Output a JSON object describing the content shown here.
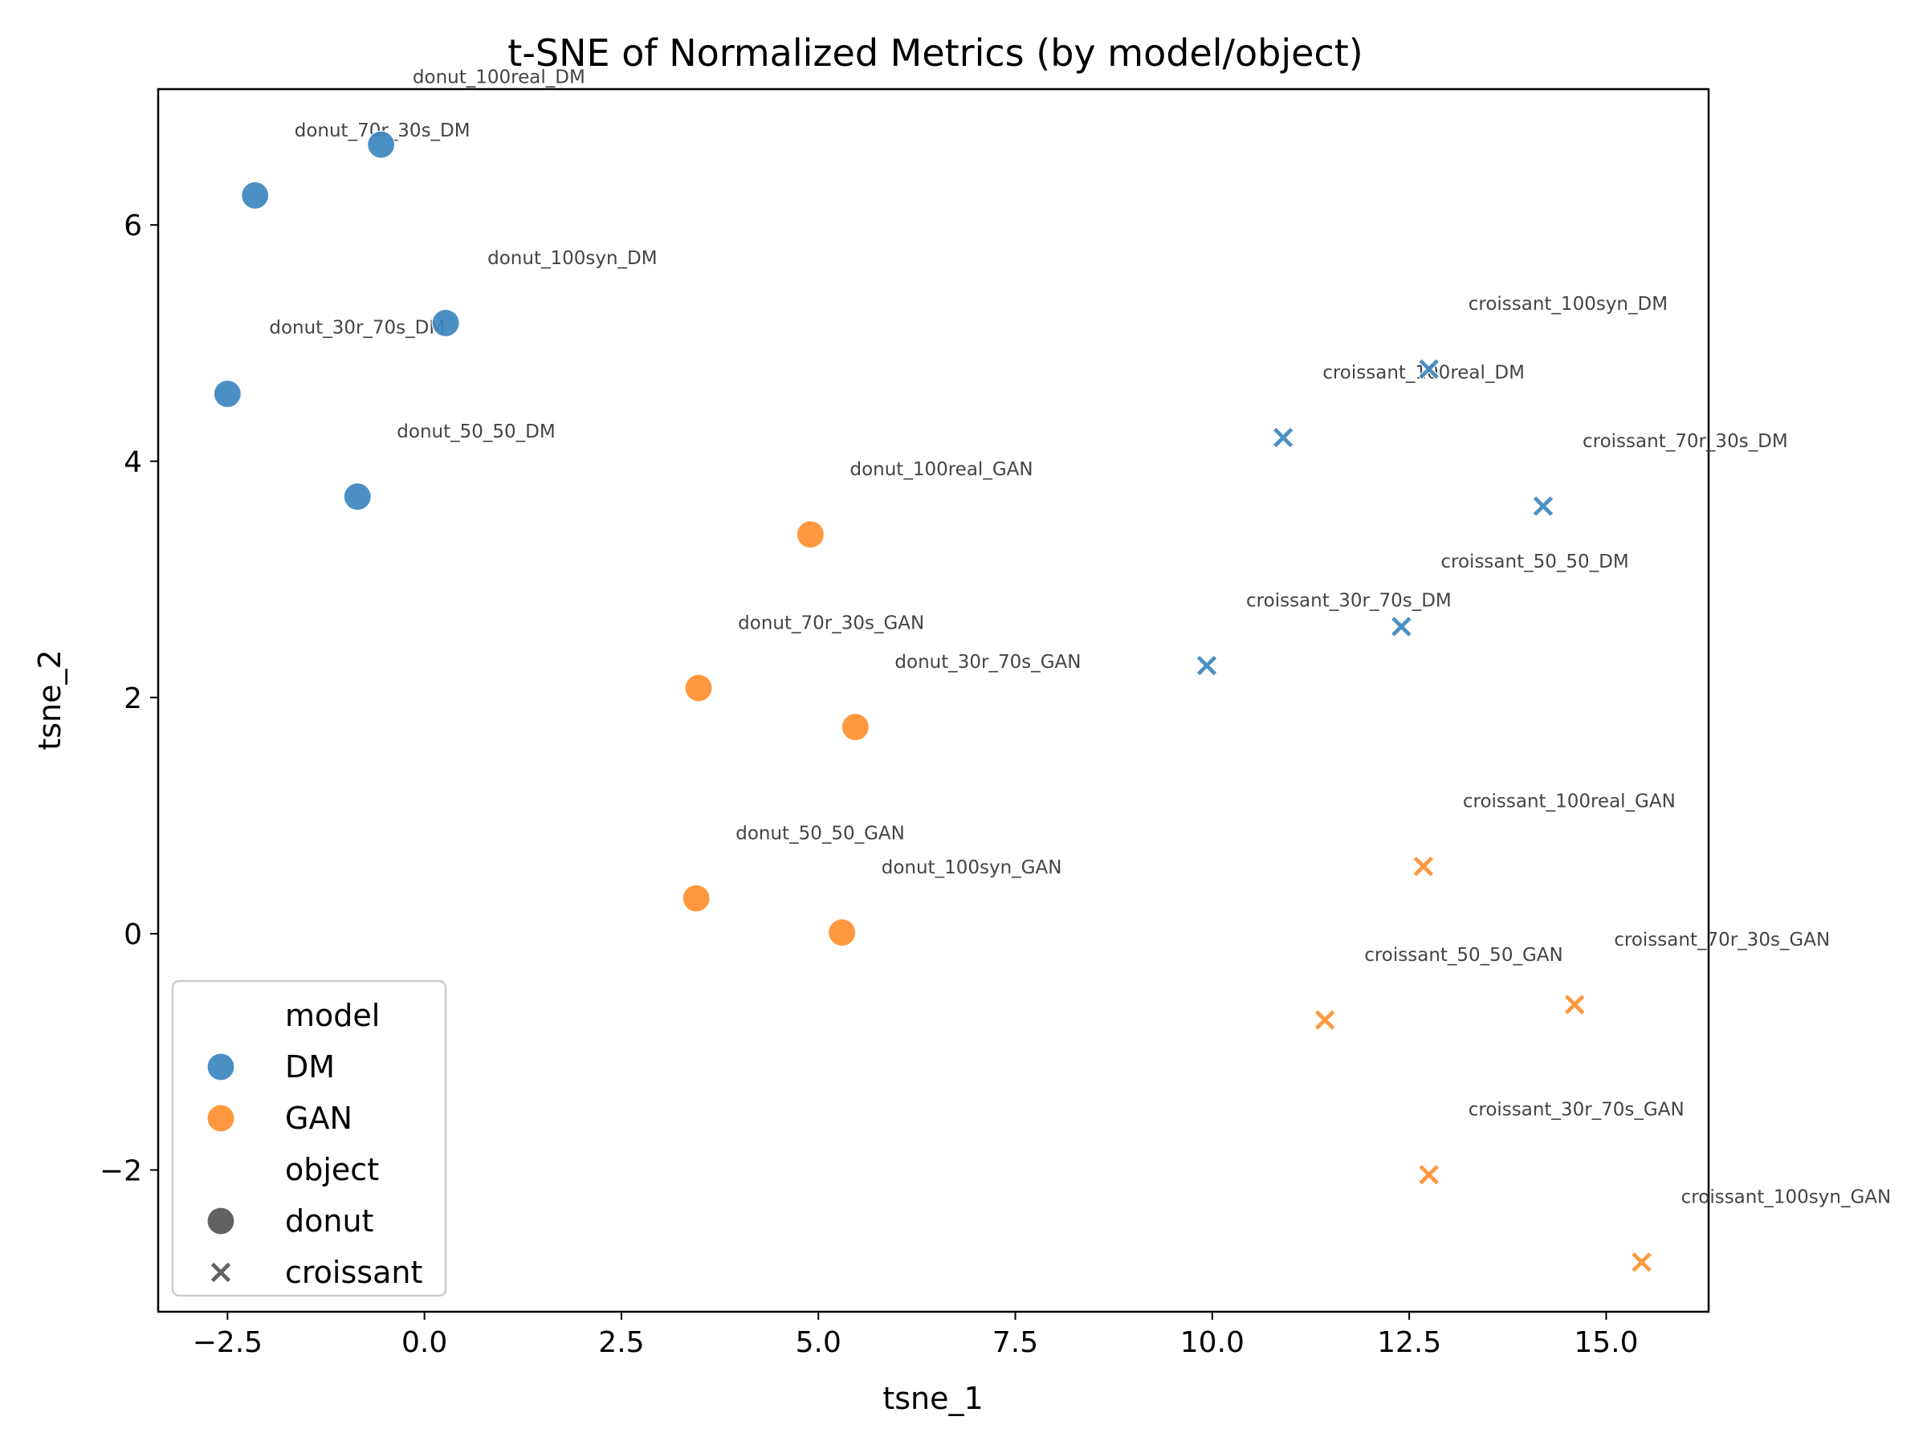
{
  "chart_data": {
    "type": "scatter",
    "title": "t-SNE of Normalized Metrics (by model/object)",
    "xlabel": "tsne_1",
    "ylabel": "tsne_2",
    "xlim": [
      -3.38,
      16.3
    ],
    "ylim": [
      -3.2,
      7.15
    ],
    "xticks": [
      -2.5,
      0.0,
      2.5,
      5.0,
      7.5,
      10.0,
      12.5,
      15.0
    ],
    "xtick_labels": [
      "−2.5",
      "0.0",
      "2.5",
      "5.0",
      "7.5",
      "10.0",
      "12.5",
      "15.0"
    ],
    "yticks": [
      -2,
      0,
      2,
      4,
      6
    ],
    "ytick_labels": [
      "−2",
      "0",
      "2",
      "4",
      "6"
    ],
    "grid": false,
    "legend": {
      "placement": "lower-left",
      "entries": [
        {
          "kind": "header",
          "text": "model"
        },
        {
          "kind": "color",
          "text": "DM",
          "key": "DM"
        },
        {
          "kind": "color",
          "text": "GAN",
          "key": "GAN"
        },
        {
          "kind": "header",
          "text": "object"
        },
        {
          "kind": "shape",
          "text": "donut",
          "key": "donut"
        },
        {
          "kind": "shape",
          "text": "croissant",
          "key": "croissant"
        }
      ]
    },
    "colors": {
      "DM": "#3c87c0",
      "GAN": "#ff8f2e",
      "legend_marker": "#555555"
    },
    "markers": {
      "donut": "circle",
      "croissant": "x"
    },
    "points": [
      {
        "label": "donut_100real_DM",
        "model": "DM",
        "object": "donut",
        "x": -2.15,
        "y": 6.25,
        "lx": -0.15,
        "ly": 7.2
      },
      {
        "label": "donut_70r_30s_DM",
        "model": "DM",
        "object": "donut",
        "x": -0.55,
        "y": 6.68,
        "lx": -1.65,
        "ly": 6.75
      },
      {
        "label": "donut_100syn_DM",
        "model": "DM",
        "object": "donut",
        "x": 0.27,
        "y": 5.17,
        "lx": 0.8,
        "ly": 5.67
      },
      {
        "label": "donut_30r_70s_DM",
        "model": "DM",
        "object": "donut",
        "x": -2.5,
        "y": 4.57,
        "lx": -1.97,
        "ly": 5.08
      },
      {
        "label": "donut_50_50_DM",
        "model": "DM",
        "object": "donut",
        "x": -0.85,
        "y": 3.7,
        "lx": -0.35,
        "ly": 4.2
      },
      {
        "label": "donut_100real_GAN",
        "model": "GAN",
        "object": "donut",
        "x": 4.9,
        "y": 3.38,
        "lx": 5.4,
        "ly": 3.88
      },
      {
        "label": "donut_70r_30s_GAN",
        "model": "GAN",
        "object": "donut",
        "x": 3.48,
        "y": 2.08,
        "lx": 3.98,
        "ly": 2.58
      },
      {
        "label": "donut_30r_70s_GAN",
        "model": "GAN",
        "object": "donut",
        "x": 5.47,
        "y": 1.75,
        "lx": 5.97,
        "ly": 2.25
      },
      {
        "label": "donut_50_50_GAN",
        "model": "GAN",
        "object": "donut",
        "x": 3.45,
        "y": 0.3,
        "lx": 3.95,
        "ly": 0.8
      },
      {
        "label": "donut_100syn_GAN",
        "model": "GAN",
        "object": "donut",
        "x": 5.3,
        "y": 0.01,
        "lx": 5.8,
        "ly": 0.51
      },
      {
        "label": "croissant_100syn_DM",
        "model": "DM",
        "object": "croissant",
        "x": 12.75,
        "y": 4.78,
        "lx": 13.25,
        "ly": 5.28
      },
      {
        "label": "croissant_100real_DM",
        "model": "DM",
        "object": "croissant",
        "x": 10.9,
        "y": 4.2,
        "lx": 11.4,
        "ly": 4.7
      },
      {
        "label": "croissant_70r_30s_DM",
        "model": "DM",
        "object": "croissant",
        "x": 14.2,
        "y": 3.62,
        "lx": 14.7,
        "ly": 4.12
      },
      {
        "label": "croissant_50_50_DM",
        "model": "DM",
        "object": "croissant",
        "x": 12.4,
        "y": 2.6,
        "lx": 12.9,
        "ly": 3.1
      },
      {
        "label": "croissant_30r_70s_DM",
        "model": "DM",
        "object": "croissant",
        "x": 9.93,
        "y": 2.27,
        "lx": 10.43,
        "ly": 2.77
      },
      {
        "label": "croissant_100real_GAN",
        "model": "GAN",
        "object": "croissant",
        "x": 12.68,
        "y": 0.57,
        "lx": 13.18,
        "ly": 1.07
      },
      {
        "label": "croissant_70r_30s_GAN",
        "model": "GAN",
        "object": "croissant",
        "x": 14.6,
        "y": -0.6,
        "lx": 15.1,
        "ly": -0.1
      },
      {
        "label": "croissant_50_50_GAN",
        "model": "GAN",
        "object": "croissant",
        "x": 11.43,
        "y": -0.73,
        "lx": 11.93,
        "ly": -0.23
      },
      {
        "label": "croissant_30r_70s_GAN",
        "model": "GAN",
        "object": "croissant",
        "x": 12.75,
        "y": -2.04,
        "lx": 13.25,
        "ly": -1.54
      },
      {
        "label": "croissant_100syn_GAN",
        "model": "GAN",
        "object": "croissant",
        "x": 15.45,
        "y": -2.78,
        "lx": 15.95,
        "ly": -2.28
      }
    ]
  }
}
